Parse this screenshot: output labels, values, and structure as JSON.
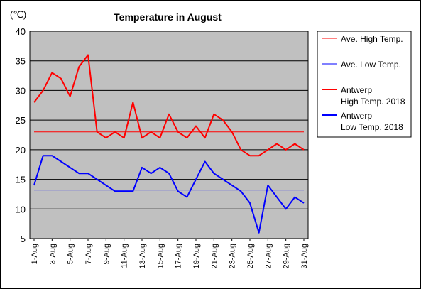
{
  "chart_data": {
    "type": "line",
    "title": "Temperature in August",
    "unit": "(℃)",
    "ylim": [
      5,
      40
    ],
    "yticks": [
      5,
      10,
      15,
      20,
      25,
      30,
      35,
      40
    ],
    "grid": true,
    "legend_position": "right",
    "plot_background": "#c0c0c0",
    "x_tick_labels": [
      "1-Aug",
      "3-Aug",
      "5-Aug",
      "7-Aug",
      "9-Aug",
      "11-Aug",
      "13-Aug",
      "15-Aug",
      "17-Aug",
      "19-Aug",
      "21-Aug",
      "23-Aug",
      "25-Aug",
      "27-Aug",
      "29-Aug",
      "31-Aug"
    ],
    "days": [
      1,
      2,
      3,
      4,
      5,
      6,
      7,
      8,
      9,
      10,
      11,
      12,
      13,
      14,
      15,
      16,
      17,
      18,
      19,
      20,
      21,
      22,
      23,
      24,
      25,
      26,
      27,
      28,
      29,
      30,
      31
    ],
    "series": [
      {
        "name": "Ave. High Temp.",
        "color": "#ff0000",
        "width": 1,
        "values": [
          23,
          23,
          23,
          23,
          23,
          23,
          23,
          23,
          23,
          23,
          23,
          23,
          23,
          23,
          23,
          23,
          23,
          23,
          23,
          23,
          23,
          23,
          23,
          23,
          23,
          23,
          23,
          23,
          23,
          23,
          23
        ]
      },
      {
        "name": "Ave. Low Temp.",
        "color": "#0000ff",
        "width": 1,
        "values": [
          13.2,
          13.2,
          13.2,
          13.2,
          13.2,
          13.2,
          13.2,
          13.2,
          13.2,
          13.2,
          13.2,
          13.2,
          13.2,
          13.2,
          13.2,
          13.2,
          13.2,
          13.2,
          13.2,
          13.2,
          13.2,
          13.2,
          13.2,
          13.2,
          13.2,
          13.2,
          13.2,
          13.2,
          13.2,
          13.2,
          13.2
        ]
      },
      {
        "name": "Antwerp High Temp. 2018",
        "name_lines": [
          "Antwerp",
          "High Temp. 2018"
        ],
        "color": "#ff0000",
        "width": 2,
        "values": [
          28,
          30,
          33,
          32,
          29,
          34,
          36,
          23,
          22,
          23,
          22,
          28,
          22,
          23,
          22,
          26,
          23,
          22,
          24,
          22,
          26,
          25,
          23,
          20,
          19,
          19,
          20,
          21,
          20,
          21,
          20
        ]
      },
      {
        "name": "Antwerp Low Temp. 2018",
        "name_lines": [
          "Antwerp",
          "Low Temp. 2018"
        ],
        "color": "#0000ff",
        "width": 2,
        "values": [
          14,
          19,
          19,
          18,
          17,
          16,
          16,
          15,
          14,
          13,
          13,
          13,
          17,
          16,
          17,
          16,
          13,
          12,
          15,
          18,
          16,
          15,
          14,
          13,
          11,
          6,
          14,
          12,
          10,
          12,
          11
        ]
      }
    ]
  }
}
